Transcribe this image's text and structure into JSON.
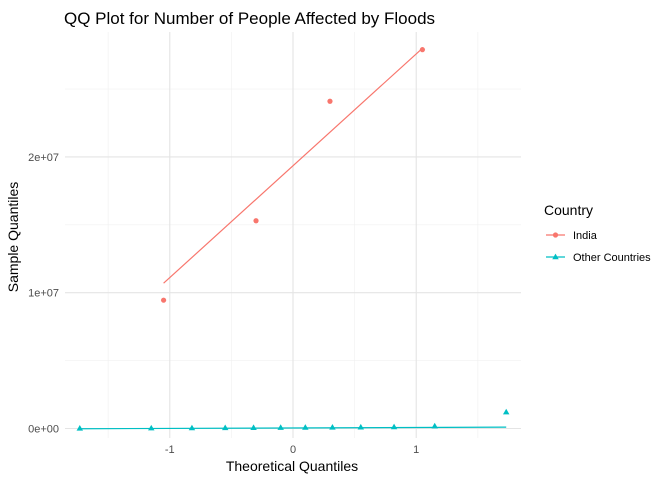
{
  "chart_data": {
    "type": "scatter",
    "title": "QQ Plot for Number of People Affected by Floods",
    "xlabel": "Theoretical Quantiles",
    "ylabel": "Sample Quantiles",
    "xlim": [
      -1.85,
      1.85
    ],
    "ylim": [
      -700000,
      29200000
    ],
    "x_ticks": [
      -1,
      0,
      1
    ],
    "x_tick_labels": [
      "-1",
      "0",
      "1"
    ],
    "y_ticks": [
      0,
      10000000,
      20000000
    ],
    "y_tick_labels": [
      "0e+00",
      "1e+07",
      "2e+07"
    ],
    "grid": true,
    "legend": {
      "title": "Country",
      "position": "right"
    },
    "series": [
      {
        "name": "India",
        "color": "#F8766D",
        "marker": "circle",
        "points": [
          {
            "x": -1.05,
            "y": 9450000
          },
          {
            "x": -0.3,
            "y": 15300000
          },
          {
            "x": 0.3,
            "y": 24100000
          },
          {
            "x": 1.05,
            "y": 27900000
          }
        ],
        "qq_line": [
          [
            -1.05,
            10700000
          ],
          [
            1.05,
            28000000
          ]
        ]
      },
      {
        "name": "Other Countries",
        "color": "#00BFC4",
        "marker": "triangle",
        "points": [
          {
            "x": -1.73,
            "y": 10000
          },
          {
            "x": -1.15,
            "y": 20000
          },
          {
            "x": -0.82,
            "y": 30000
          },
          {
            "x": -0.55,
            "y": 40000
          },
          {
            "x": -0.32,
            "y": 50000
          },
          {
            "x": -0.1,
            "y": 60000
          },
          {
            "x": 0.1,
            "y": 70000
          },
          {
            "x": 0.32,
            "y": 80000
          },
          {
            "x": 0.55,
            "y": 90000
          },
          {
            "x": 0.82,
            "y": 110000
          },
          {
            "x": 1.15,
            "y": 170000
          },
          {
            "x": 1.73,
            "y": 1200000
          }
        ],
        "qq_line": [
          [
            -1.73,
            -20000
          ],
          [
            1.73,
            100000
          ]
        ]
      }
    ]
  }
}
